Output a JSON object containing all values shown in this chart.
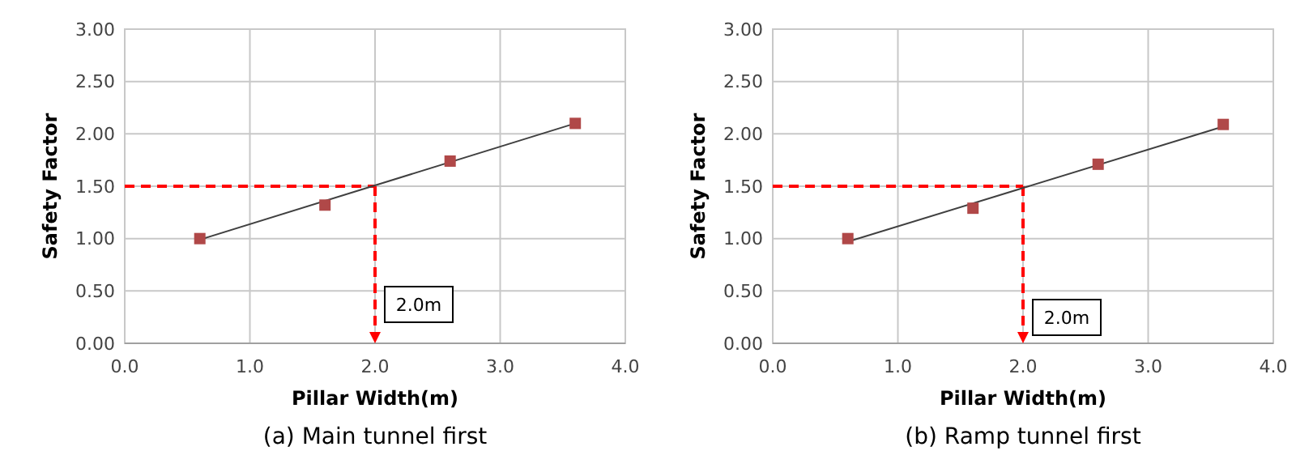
{
  "chart_data": [
    {
      "type": "scatter",
      "title": "(a) Main tunnel first",
      "xlabel": "Pillar Width(m)",
      "ylabel": "Safety Factor",
      "xlim": [
        0,
        4
      ],
      "ylim": [
        0,
        3
      ],
      "xticks": [
        {
          "value": 0,
          "label": "0.0"
        },
        {
          "value": 1,
          "label": "1.0"
        },
        {
          "value": 2,
          "label": "2.0"
        },
        {
          "value": 3,
          "label": "3.0"
        },
        {
          "value": 4,
          "label": "4.0"
        }
      ],
      "yticks": [
        {
          "value": 0,
          "label": "0.00"
        },
        {
          "value": 0.5,
          "label": "0.50"
        },
        {
          "value": 1,
          "label": "1.00"
        },
        {
          "value": 1.5,
          "label": "1.50"
        },
        {
          "value": 2,
          "label": "2.00"
        },
        {
          "value": 2.5,
          "label": "2.50"
        },
        {
          "value": 3,
          "label": "3.00"
        }
      ],
      "grid": true,
      "marker": "square",
      "series": [
        {
          "type": "line",
          "marker": "none",
          "color": "#404040",
          "x": [
            0.6,
            3.6
          ],
          "values": [
            0.99,
            2.1
          ]
        },
        {
          "color": "#b04848",
          "x": [
            0.6,
            1.6,
            2.6,
            3.6
          ],
          "values": [
            1.0,
            1.32,
            1.74,
            2.1
          ]
        }
      ],
      "ref_lines": [
        {
          "axis": "y",
          "value": 1.5,
          "color": "#ff0000",
          "line_style": "dashed"
        },
        {
          "axis": "x",
          "value": 2,
          "color": "#ff0000",
          "line_style": "dashed"
        }
      ],
      "annotations": [
        "2.0m"
      ]
    },
    {
      "type": "scatter",
      "title": "(b) Ramp tunnel first",
      "xlabel": "Pillar Width(m)",
      "ylabel": "Safety Factor",
      "xlim": [
        0,
        4
      ],
      "ylim": [
        0,
        3
      ],
      "xticks": [
        {
          "value": 0,
          "label": "0.0"
        },
        {
          "value": 1,
          "label": "1.0"
        },
        {
          "value": 2,
          "label": "2.0"
        },
        {
          "value": 3,
          "label": "3.0"
        },
        {
          "value": 4,
          "label": "4.0"
        }
      ],
      "yticks": [
        {
          "value": 0,
          "label": "0.00"
        },
        {
          "value": 0.5,
          "label": "0.50"
        },
        {
          "value": 1,
          "label": "1.00"
        },
        {
          "value": 1.5,
          "label": "1.50"
        },
        {
          "value": 2,
          "label": "2.00"
        },
        {
          "value": 2.5,
          "label": "2.50"
        },
        {
          "value": 3,
          "label": "3.00"
        }
      ],
      "grid": true,
      "marker": "square",
      "series": [
        {
          "type": "line",
          "marker": "none",
          "color": "#404040",
          "x": [
            0.6,
            3.6
          ],
          "values": [
            0.97,
            2.07
          ]
        },
        {
          "color": "#b04848",
          "x": [
            0.6,
            1.6,
            2.6,
            3.6
          ],
          "values": [
            1.0,
            1.29,
            1.71,
            2.09
          ]
        }
      ],
      "ref_lines": [
        {
          "axis": "y",
          "value": 1.5,
          "color": "#ff0000",
          "line_style": "dashed"
        },
        {
          "axis": "x",
          "value": 2,
          "color": "#ff0000",
          "line_style": "dashed"
        }
      ],
      "annotations": [
        "2.0m"
      ]
    }
  ]
}
